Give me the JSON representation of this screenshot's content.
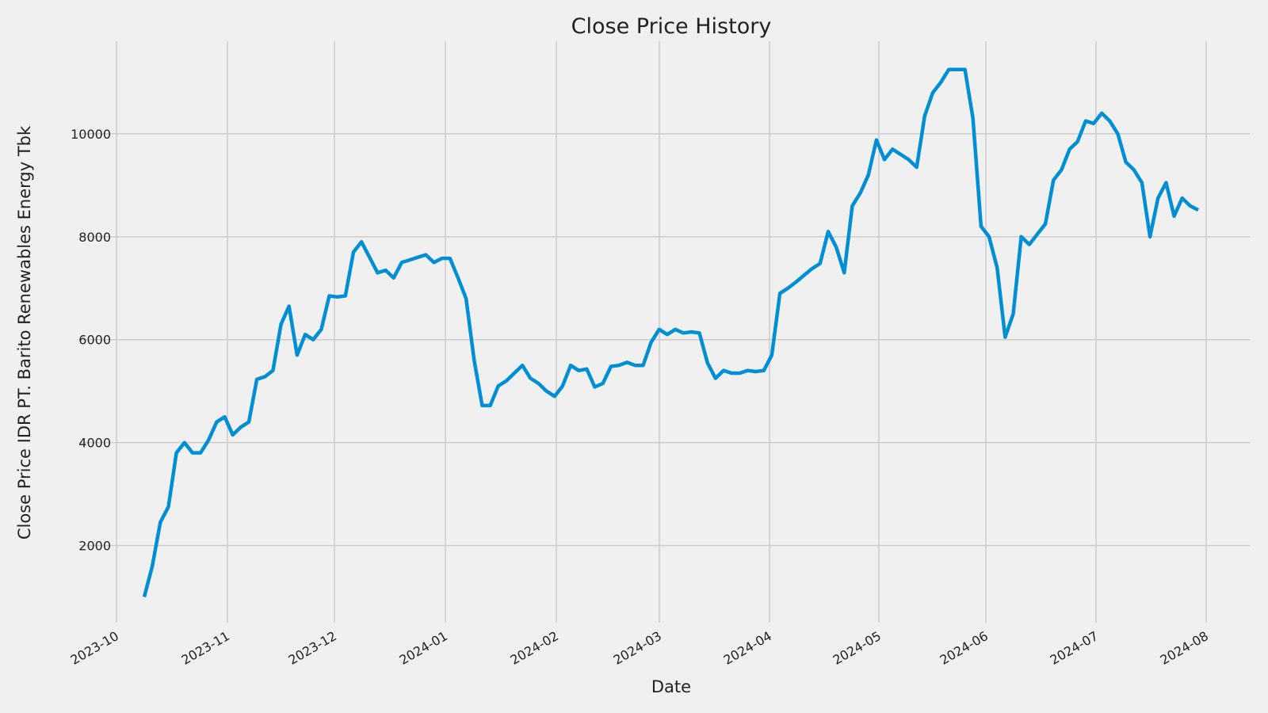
{
  "chart_data": {
    "type": "line",
    "title": "Close Price History",
    "x_label": "Date",
    "y_label": "Close Price IDR PT. Barito Renewables Energy Tbk",
    "series": [
      {
        "name": "Close",
        "color": "#008fd5",
        "values": [
          1000,
          1600,
          2450,
          2750,
          3800,
          4000,
          3800,
          3800,
          4050,
          4400,
          4500,
          4150,
          4300,
          4400,
          5230,
          5280,
          5400,
          6300,
          6650,
          5700,
          6100,
          6000,
          6200,
          6850,
          6830,
          6850,
          7700,
          7900,
          7600,
          7300,
          7350,
          7200,
          7500,
          7550,
          7600,
          7650,
          7500,
          7580,
          7580,
          7200,
          6800,
          5600,
          4720,
          4720,
          5100,
          5200,
          5350,
          5500,
          5250,
          5150,
          5000,
          4900,
          5100,
          5500,
          5400,
          5430,
          5080,
          5150,
          5480,
          5500,
          5560,
          5500,
          5500,
          5950,
          6200,
          6100,
          6200,
          6130,
          6150,
          6130,
          5550,
          5250,
          5400,
          5350,
          5350,
          5400,
          5380,
          5400,
          5700,
          6900,
          7000,
          7120,
          7250,
          7380,
          7480,
          8100,
          7800,
          7300,
          8600,
          8850,
          9200,
          9880,
          9500,
          9700,
          9600,
          9500,
          9350,
          10350,
          10800,
          11000,
          11250,
          11250,
          11250,
          10300,
          8200,
          8000,
          7400,
          6050,
          6500,
          8000,
          7850,
          8050,
          8250,
          9100,
          9300,
          9700,
          9850,
          10250,
          10200,
          10400,
          10250,
          10000,
          9450,
          9300,
          9050,
          8000,
          8750,
          9050,
          8400,
          8750,
          8600,
          8520
        ]
      }
    ],
    "ylim": [
      500,
      11800
    ],
    "yticks": [
      2000,
      4000,
      6000,
      8000,
      10000
    ],
    "xticks": [
      "2023-10",
      "2023-11",
      "2023-12",
      "2024-01",
      "2024-02",
      "2024-03",
      "2024-04",
      "2024-05",
      "2024-06",
      "2024-07",
      "2024-08"
    ],
    "grid": true
  }
}
